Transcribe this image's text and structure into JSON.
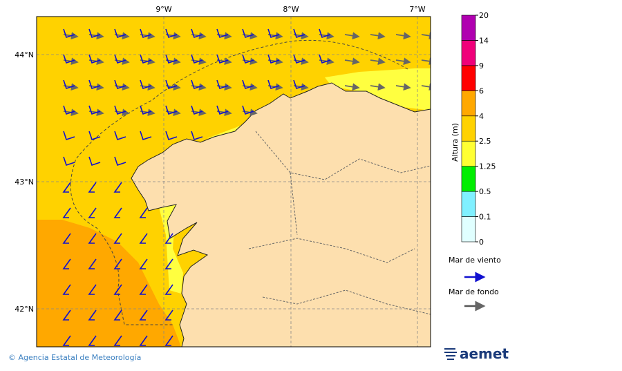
{
  "map": {
    "lon_labels": [
      "9°W",
      "8°W",
      "7°W"
    ],
    "lat_labels": [
      "44°N",
      "43°N",
      "42°N"
    ],
    "colorbar": {
      "title": "Altura (m)",
      "ticks": [
        0,
        0.1,
        0.5,
        1.25,
        2.5,
        4,
        6,
        9,
        14,
        20
      ],
      "colors": [
        "#e0ffff",
        "#80f0ff",
        "#00ee00",
        "#ffff33",
        "#ffd200",
        "#ffa800",
        "#ff0000",
        "#f0007a",
        "#b000b0"
      ]
    },
    "legend": {
      "wind_sea": "Mar de viento",
      "swell": "Mar de fondo"
    },
    "footer": {
      "credit": "© Agencia Estatal de Meteorología",
      "logo": "aemet"
    }
  }
}
